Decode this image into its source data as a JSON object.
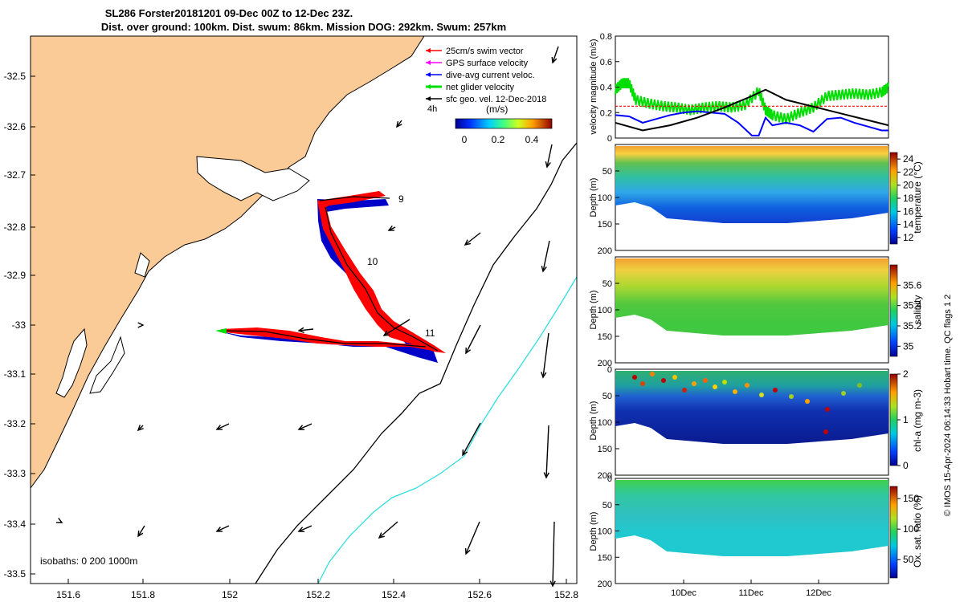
{
  "title": {
    "line1": "SL286 Forster20181201 09-Dec 00Z to 12-Dec 23Z.",
    "line2": "Dist. over ground: 100km. Dist. swum: 86km. Mission DOG: 292km. Swum: 257km"
  },
  "colors": {
    "land": "#fbcb97",
    "swim": "#ff0000",
    "gps": "#ff00ff",
    "dive_avg": "#0000ff",
    "net": "#00dd00",
    "geo": "#000000",
    "isobath_200": "#000000",
    "isobath_1000": "#33dddd",
    "track": "#000000",
    "band_blue": "#0000c8"
  },
  "map": {
    "lon_ticks": [
      "151.6",
      "151.8",
      "152",
      "152.2",
      "152.4",
      "152.6",
      "152.8"
    ],
    "lat_ticks": [
      "-32.5",
      "-32.6",
      "-32.7",
      "-32.8",
      "-32.9",
      "-33",
      "-33.1",
      "-33.2",
      "-33.3",
      "-33.4",
      "-33.5"
    ],
    "legend": [
      {
        "label": "25cm/s swim vector",
        "color_key": "swim"
      },
      {
        "label": "GPS surface velocity",
        "color_key": "gps"
      },
      {
        "label": "dive-avg current veloc.",
        "color_key": "dive_avg"
      },
      {
        "label": "net glider velocity",
        "color_key": "net"
      },
      {
        "label": "sfc geo. vel. 12-Dec-2018",
        "color_key": "geo"
      }
    ],
    "scale_label": "4h",
    "colorbar_unit": "(m/s)",
    "colorbar_ticks": [
      "0",
      "0.2",
      "0.4"
    ],
    "day_labels": [
      "9",
      "10",
      "11"
    ],
    "isobath_label": "isobaths: 0   200  1000m"
  },
  "chart_data": [
    {
      "type": "line",
      "ylabel": "velocity magnitude (m/s)",
      "ylim": [
        0,
        0.8
      ],
      "yticks": [
        "0",
        "0.2",
        "0.4",
        "0.6",
        "0.8"
      ],
      "x_range_days": [
        9,
        13
      ],
      "series": [
        {
          "color_key": "net",
          "x": [
            9.0,
            9.1,
            9.2,
            9.3,
            9.5,
            9.7,
            9.9,
            10.1,
            10.3,
            10.5,
            10.7,
            10.9,
            11.1,
            11.2,
            11.3,
            11.5,
            11.7,
            11.9,
            12.1,
            12.3,
            12.5,
            12.7,
            12.9,
            13.0
          ],
          "y": [
            0.38,
            0.43,
            0.43,
            0.3,
            0.27,
            0.25,
            0.24,
            0.22,
            0.24,
            0.25,
            0.24,
            0.26,
            0.37,
            0.22,
            0.18,
            0.15,
            0.2,
            0.24,
            0.33,
            0.34,
            0.35,
            0.34,
            0.36,
            0.4
          ]
        },
        {
          "color_key": "swim",
          "x": [
            9.0,
            13.0
          ],
          "y": [
            0.25,
            0.25
          ]
        },
        {
          "color_key": "dive_avg",
          "x": [
            9.0,
            9.2,
            9.4,
            9.6,
            9.8,
            10.0,
            10.2,
            10.4,
            10.6,
            10.8,
            11.0,
            11.1,
            11.2,
            11.3,
            11.5,
            11.7,
            11.9,
            12.1,
            12.3,
            12.5,
            12.7,
            12.9,
            13.0
          ],
          "y": [
            0.18,
            0.17,
            0.12,
            0.15,
            0.18,
            0.2,
            0.21,
            0.2,
            0.19,
            0.12,
            0.02,
            0.02,
            0.16,
            0.1,
            0.12,
            0.1,
            0.05,
            0.15,
            0.16,
            0.12,
            0.09,
            0.06,
            0.06
          ]
        },
        {
          "color_key": "geo",
          "x": [
            9.0,
            9.4,
            9.8,
            10.2,
            10.6,
            11.0,
            11.2,
            11.5,
            11.8,
            12.1,
            12.4,
            12.7,
            13.0
          ],
          "y": [
            0.12,
            0.06,
            0.1,
            0.16,
            0.24,
            0.33,
            0.38,
            0.3,
            0.26,
            0.22,
            0.18,
            0.14,
            0.1
          ]
        }
      ]
    },
    {
      "type": "heatmap",
      "variable": "temperature",
      "ylabel": "Depth (m)",
      "clabel": "temperature (°C)",
      "ylim": [
        200,
        0
      ],
      "yticks": [
        "50",
        "100",
        "150",
        "200"
      ],
      "cticks": [
        "12",
        "14",
        "16",
        "18",
        "20",
        "22",
        "24"
      ]
    },
    {
      "type": "heatmap",
      "variable": "salinity",
      "ylabel": "Depth (m)",
      "clabel": "salinity",
      "ylim": [
        200,
        0
      ],
      "yticks": [
        "50",
        "100",
        "150",
        "200"
      ],
      "cticks": [
        "35",
        "35.2",
        "35.4",
        "35.6"
      ]
    },
    {
      "type": "heatmap",
      "variable": "chl-a",
      "ylabel": "Depth (m)",
      "clabel": "chl-a (mg m-3)",
      "ylim": [
        200,
        0
      ],
      "yticks": [
        "0",
        "50",
        "100",
        "150",
        "200"
      ],
      "cticks": [
        "0",
        "1",
        "2"
      ]
    },
    {
      "type": "heatmap",
      "variable": "Ox. sat. ratio",
      "ylabel": "Depth (m)",
      "clabel": "Ox. sat. ratio (%)",
      "ylim": [
        200,
        0
      ],
      "yticks": [
        "0",
        "50",
        "100",
        "150",
        "200"
      ],
      "cticks": [
        "50",
        "100",
        "150"
      ],
      "xticks": [
        "10Dec",
        "11Dec",
        "12Dec"
      ]
    }
  ],
  "side_label": "© IMOS 15-Apr-2024 06:14:33 Hobart time. QC flags 1  2"
}
